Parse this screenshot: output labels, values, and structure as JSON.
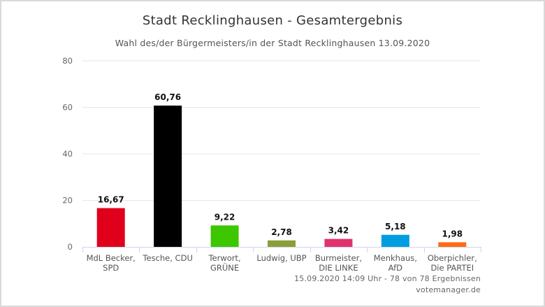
{
  "chart_data": {
    "type": "bar",
    "title": "Stadt Recklinghausen - Gesamtergebnis",
    "subtitle": "Wahl des/der Bürgermeisters/in der Stadt Recklinghausen 13.09.2020",
    "categories": [
      [
        "MdL Becker,",
        "SPD"
      ],
      [
        "Tesche, CDU"
      ],
      [
        "Terwort,",
        "GRÜNE"
      ],
      [
        "Ludwig, UBP"
      ],
      [
        "Burmeister,",
        "DIE LINKE"
      ],
      [
        "Menkhaus,",
        "AfD"
      ],
      [
        "Oberpichler,",
        "Die PARTEI"
      ]
    ],
    "values": [
      16.67,
      60.76,
      9.22,
      2.78,
      3.42,
      5.18,
      1.98
    ],
    "value_labels": [
      "16,67",
      "60,76",
      "9,22",
      "2,78",
      "3,42",
      "5,18",
      "1,98"
    ],
    "colors": [
      "#e0001b",
      "#000000",
      "#3cc700",
      "#8a9e3a",
      "#e0336e",
      "#009ee0",
      "#ff6a13"
    ],
    "ylim": [
      0,
      80
    ],
    "yticks": [
      0,
      20,
      40,
      60,
      80
    ],
    "grid": true,
    "legend": "none",
    "xlabel": "",
    "ylabel": ""
  },
  "footer": {
    "status": "15.09.2020 14:09 Uhr - 78 von 78 Ergebnissen",
    "source": "votemanager.de"
  }
}
